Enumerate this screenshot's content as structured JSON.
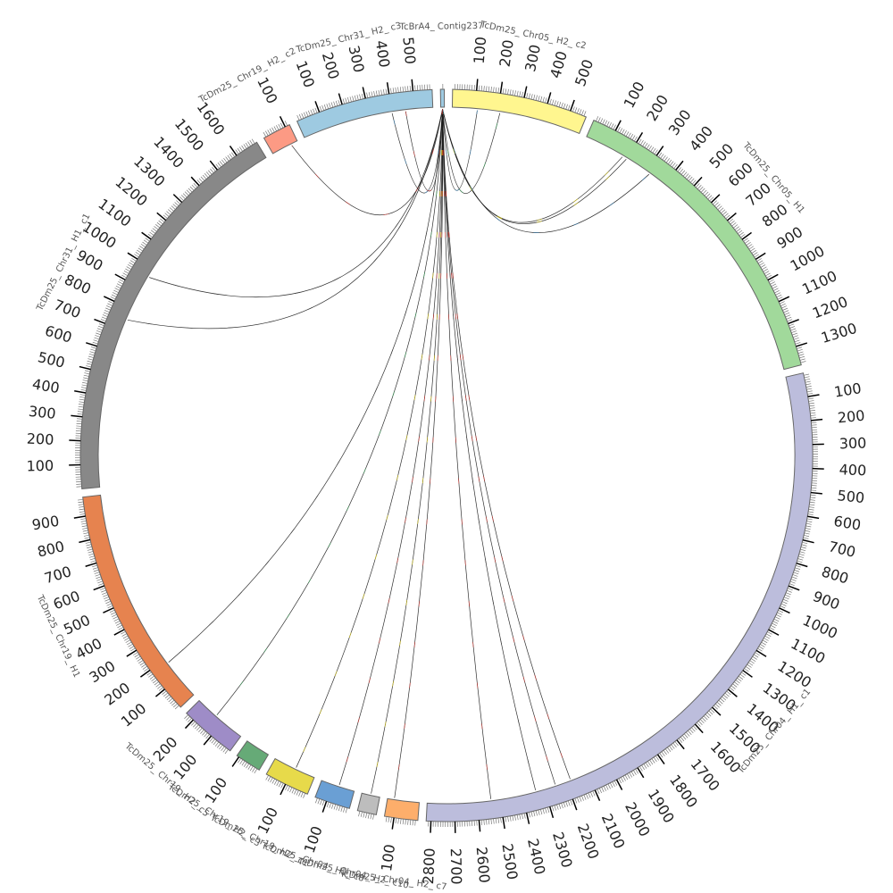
{
  "chart_data": {
    "type": "chord",
    "segments": [
      {
        "name": "TcBrA4_Contig237",
        "length": 16,
        "color": "#9ecae1"
      },
      {
        "name": "TcDm25_Chr05_H2_c2",
        "length": 570,
        "color": "#fff68f"
      },
      {
        "name": "TcDm25_Chr05_H1",
        "length": 1380,
        "color": "#a1d99b"
      },
      {
        "name": "TcDm25_Chr04_H1_c1",
        "length": 2820,
        "color": "#bcbddc"
      },
      {
        "name": "TcDm25_Chr04_H2_c7",
        "length": 140,
        "color": "#fdae6b"
      },
      {
        "name": "TcDm25_Chr04_H2_c10",
        "length": 80,
        "color": "#bdbdbd"
      },
      {
        "name": "TcDm25_Chr04_H2_c8",
        "length": 150,
        "color": "#6a9fd4"
      },
      {
        "name": "TcDm25_Chr19_H2_c1",
        "length": 190,
        "color": "#e7da4a"
      },
      {
        "name": "TcDm25_Chr19_H2_c3",
        "length": 110,
        "color": "#66aa77"
      },
      {
        "name": "TcDm25_Chr19_H2_c5",
        "length": 240,
        "color": "#9e8cc7"
      },
      {
        "name": "TcDm25_Chr19_H1",
        "length": 980,
        "color": "#e6834f"
      },
      {
        "name": "TcDm25_Chr31_H1_c1",
        "length": 1700,
        "color": "#888888"
      },
      {
        "name": "TcDm25_Chr19_H2_c2",
        "length": 120,
        "color": "#fc9a84"
      },
      {
        "name": "TcDm25_Chr31_H2_c3",
        "length": 580,
        "color": "#9ecae1"
      }
    ],
    "visible_labels": {
      "TcBrA4_Contig237": "TcBrA4_ Contig237",
      "TcDm25_Chr05_H2_c2": "TcDm25_ Chr05_ H2_ c2",
      "TcDm25_Chr05_H1": "TcDm25_ Chr05_ H1",
      "TcDm25_Chr04_H1_c1": "TcDm25_ Chr04_ H1_ c1",
      "TcDm25_Chr04_H2_c7": "TcDm25_ Chr04_ H2_ c7",
      "TcDm25_Chr04_H2_c10": "TcDm25_ Chr04_ H2_ c10",
      "TcDm25_Chr04_H2_c8": "TcDm25_ Chr04_ H2_ c8",
      "TcDm25_Chr19_H2_c1": "TcDm25_ Chr19_ H2_ c1",
      "TcDm25_Chr19_H2_c3": "TcDm25_ Chr19_ H2_ c3",
      "TcDm25_Chr19_H2_c5": "TcDm25_ Chr19_ H2_ c5",
      "TcDm25_Chr19_H1": "TcDm25_ Chr19_ H1",
      "TcDm25_Chr31_H1_c1": "TcDm25_ Chr31_ H1_ c1",
      "TcDm25_Chr19_H2_c2": "TcDm25_ Chr19_ H2_ c2",
      "TcDm25_Chr31_H2_c3": "TcDm25_ Chr31_ H2_ c3"
    },
    "tick_interval": 100,
    "minor_tick_interval": 10,
    "links": [
      {
        "from": {
          "seg": "TcBrA4_Contig237",
          "pos": 8
        },
        "to": {
          "seg": "TcDm25_Chr05_H2_c2",
          "pos": 110
        },
        "color": "#3182bd"
      },
      {
        "from": {
          "seg": "TcBrA4_Contig237",
          "pos": 8
        },
        "to": {
          "seg": "TcDm25_Chr05_H2_c2",
          "pos": 210
        },
        "color": "#31a354"
      },
      {
        "from": {
          "seg": "TcBrA4_Contig237",
          "pos": 8
        },
        "to": {
          "seg": "TcDm25_Chr05_H1",
          "pos": 180
        },
        "color": "#e6d200"
      },
      {
        "from": {
          "seg": "TcBrA4_Contig237",
          "pos": 8
        },
        "to": {
          "seg": "TcDm25_Chr05_H1",
          "pos": 200
        },
        "color": "#e6d200"
      },
      {
        "from": {
          "seg": "TcBrA4_Contig237",
          "pos": 8
        },
        "to": {
          "seg": "TcDm25_Chr05_H1",
          "pos": 320
        },
        "color": "#3182bd"
      },
      {
        "from": {
          "seg": "TcBrA4_Contig237",
          "pos": 8
        },
        "to": {
          "seg": "TcDm25_Chr04_H1_c1",
          "pos": 2180
        },
        "color": "#de2d26"
      },
      {
        "from": {
          "seg": "TcBrA4_Contig237",
          "pos": 8
        },
        "to": {
          "seg": "TcDm25_Chr04_H1_c1",
          "pos": 2250
        },
        "color": "#de2d26"
      },
      {
        "from": {
          "seg": "TcBrA4_Contig237",
          "pos": 8
        },
        "to": {
          "seg": "TcDm25_Chr04_H1_c1",
          "pos": 2340
        },
        "color": "#333333"
      },
      {
        "from": {
          "seg": "TcBrA4_Contig237",
          "pos": 8
        },
        "to": {
          "seg": "TcDm25_Chr04_H1_c1",
          "pos": 2540
        },
        "color": "#de2d26"
      },
      {
        "from": {
          "seg": "TcBrA4_Contig237",
          "pos": 8
        },
        "to": {
          "seg": "TcDm25_Chr04_H2_c7",
          "pos": 110
        },
        "color": "#de2d26"
      },
      {
        "from": {
          "seg": "TcBrA4_Contig237",
          "pos": 8
        },
        "to": {
          "seg": "TcDm25_Chr04_H2_c10",
          "pos": 40
        },
        "color": "#e6d200"
      },
      {
        "from": {
          "seg": "TcBrA4_Contig237",
          "pos": 8
        },
        "to": {
          "seg": "TcDm25_Chr04_H2_c8",
          "pos": 70
        },
        "color": "#de2d26"
      },
      {
        "from": {
          "seg": "TcBrA4_Contig237",
          "pos": 8
        },
        "to": {
          "seg": "TcDm25_Chr19_H2_c1",
          "pos": 90
        },
        "color": "#e6d200"
      },
      {
        "from": {
          "seg": "TcBrA4_Contig237",
          "pos": 8
        },
        "to": {
          "seg": "TcDm25_Chr19_H2_c5",
          "pos": 140
        },
        "color": "#31a354"
      },
      {
        "from": {
          "seg": "TcBrA4_Contig237",
          "pos": 8
        },
        "to": {
          "seg": "TcDm25_Chr19_H1",
          "pos": 180
        },
        "color": "#333333"
      },
      {
        "from": {
          "seg": "TcBrA4_Contig237",
          "pos": 8
        },
        "to": {
          "seg": "TcDm25_Chr31_H1_c1",
          "pos": 750
        },
        "color": "#333333"
      },
      {
        "from": {
          "seg": "TcBrA4_Contig237",
          "pos": 8
        },
        "to": {
          "seg": "TcDm25_Chr31_H1_c1",
          "pos": 960
        },
        "color": "#333333"
      },
      {
        "from": {
          "seg": "TcBrA4_Contig237",
          "pos": 8
        },
        "to": {
          "seg": "TcDm25_Chr19_H2_c2",
          "pos": 90
        },
        "color": "#de2d26"
      },
      {
        "from": {
          "seg": "TcBrA4_Contig237",
          "pos": 8
        },
        "to": {
          "seg": "TcDm25_Chr31_H2_c3",
          "pos": 400
        },
        "color": "#3182bd"
      },
      {
        "from": {
          "seg": "TcBrA4_Contig237",
          "pos": 8
        },
        "to": {
          "seg": "TcDm25_Chr31_H2_c3",
          "pos": 460
        },
        "color": "#de2d26"
      }
    ]
  }
}
